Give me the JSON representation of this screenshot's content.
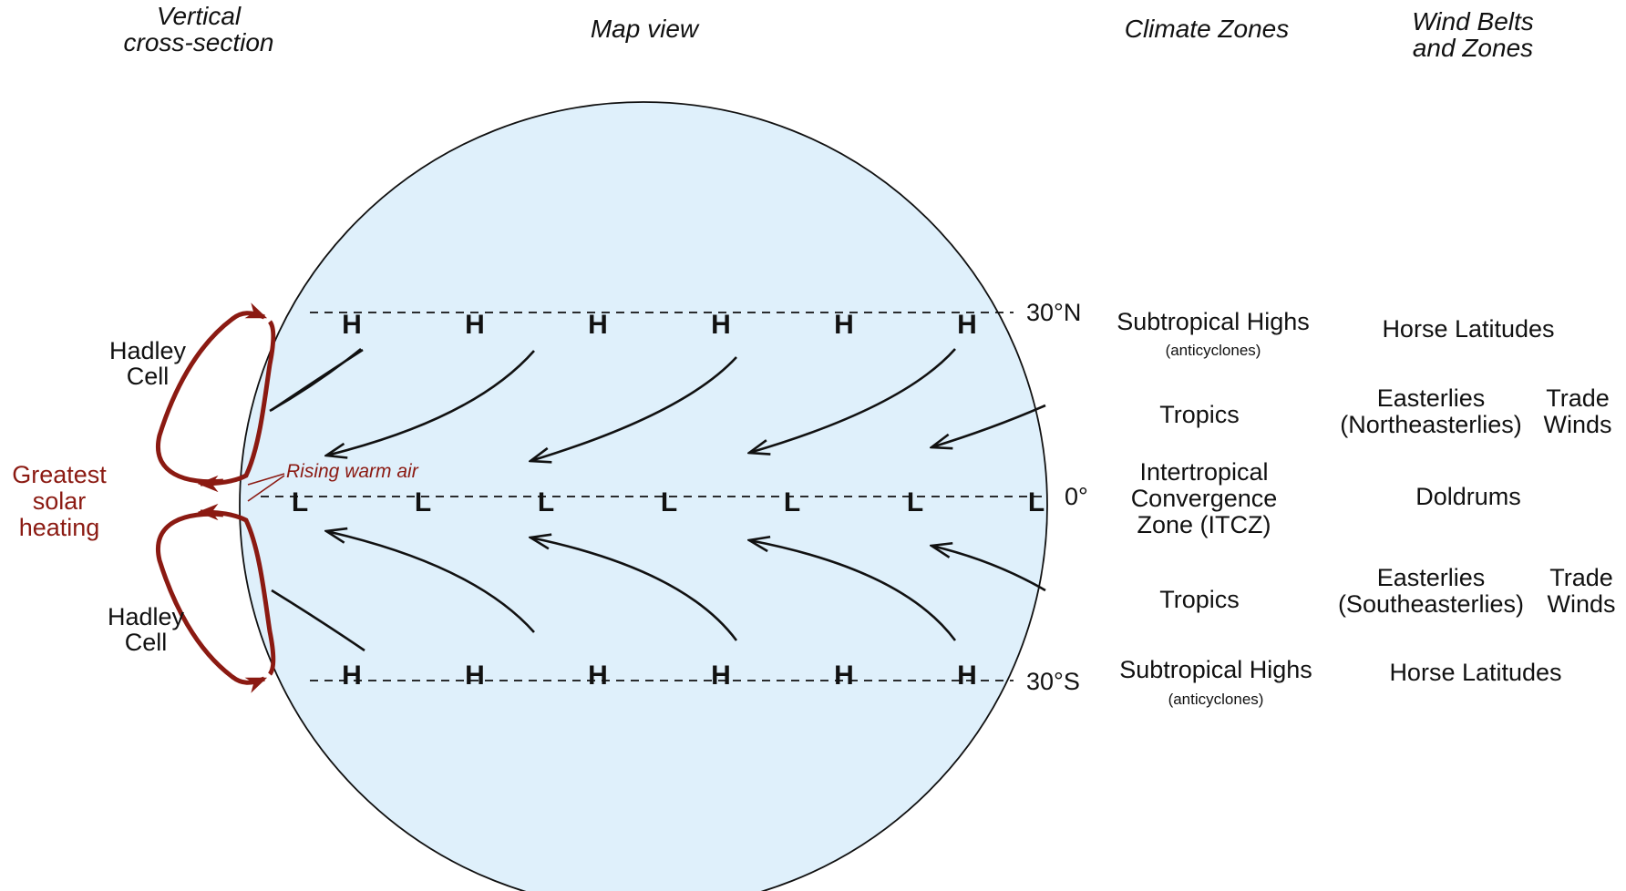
{
  "headers": {
    "vertical_line1": "Vertical",
    "vertical_line2": "cross-section",
    "map_view": "Map view",
    "climate_zones": "Climate Zones",
    "wind_line1": "Wind Belts",
    "wind_line2": "and Zones"
  },
  "latitudes": {
    "north": "30°N",
    "equator": "0°",
    "south": "30°S"
  },
  "pressure": {
    "high": "H",
    "low": "L"
  },
  "cross_section": {
    "hadley_line1": "Hadley",
    "hadley_line2": "Cell",
    "heating_line1": "Greatest",
    "heating_line2": "solar",
    "heating_line3": "heating",
    "rising_air": "Rising warm air"
  },
  "climate_zones": {
    "subtropical_highs": "Subtropical Highs",
    "anticyclones": "(anticyclones)",
    "tropics": "Tropics",
    "itcz_line1": "Intertropical",
    "itcz_line2": "Convergence",
    "itcz_line3": "Zone (ITCZ)"
  },
  "wind_belts": {
    "horse_latitudes": "Horse Latitudes",
    "easterlies": "Easterlies",
    "northeasterlies": "(Northeasterlies)",
    "southeasterlies": "(Southeasterlies)",
    "trade": "Trade",
    "winds": "Winds",
    "doldrums": "Doldrums"
  },
  "colors": {
    "ocean": "#dff0fb",
    "hadley_arrow": "#8b1a12",
    "ink": "#111111"
  }
}
